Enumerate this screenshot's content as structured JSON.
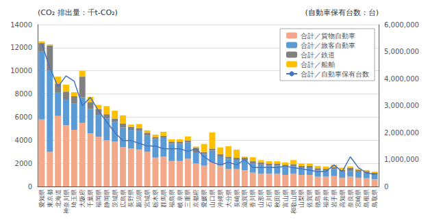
{
  "chart_data": {
    "type": "bar",
    "ylabel": "(CO₂ 排出量：千t-CO₂)",
    "y2label": "(自動車保有台数：台)",
    "categories": [
      "愛知県",
      "東京都",
      "北海道",
      "神奈川県",
      "埼玉県",
      "大阪府",
      "千葉県",
      "福岡県",
      "静岡県",
      "茨城県",
      "広島県",
      "長野県",
      "新潟県",
      "宮城県",
      "栃木県",
      "群馬県",
      "福島県",
      "岐阜県",
      "三重県",
      "京都府",
      "愛媛県",
      "山口県",
      "沖縄県",
      "大分県",
      "長崎県",
      "滋賀県",
      "香川県",
      "山形県",
      "石川県",
      "秋田県",
      "富山県",
      "和歌山県",
      "山梨県",
      "佐賀県",
      "徳島県",
      "福井県",
      "岩手県",
      "高知県",
      "奈良県",
      "宮崎県",
      "島根県",
      "鳥取県"
    ],
    "series": [
      {
        "name": "合計／貨物自動車",
        "type": "bar",
        "color": "#F4A88A",
        "values": [
          5800,
          3000,
          6100,
          5300,
          4900,
          5500,
          4600,
          4300,
          4000,
          3900,
          3400,
          3300,
          3200,
          3000,
          2500,
          2600,
          2200,
          2200,
          2400,
          2000,
          1800,
          2100,
          1800,
          1500,
          1500,
          1400,
          1200,
          1100,
          1100,
          1100,
          1000,
          1100,
          1000,
          1000,
          850,
          850,
          900,
          750,
          850,
          750,
          720,
          620
        ]
      },
      {
        "name": "合計／旅客自動車",
        "type": "bar",
        "color": "#5B9BD5",
        "values": [
          5900,
          7000,
          2000,
          2200,
          2300,
          2200,
          2100,
          1900,
          1900,
          1700,
          1700,
          1600,
          1600,
          1400,
          1600,
          1600,
          1500,
          1500,
          1400,
          900,
          1000,
          1000,
          800,
          900,
          800,
          900,
          800,
          800,
          700,
          700,
          700,
          650,
          600,
          600,
          550,
          500,
          600,
          500,
          500,
          500,
          420,
          380
        ]
      },
      {
        "name": "合計／鉄道",
        "type": "bar",
        "color": "#808080",
        "values": [
          700,
          2200,
          800,
          700,
          600,
          1800,
          600,
          500,
          350,
          250,
          350,
          250,
          250,
          250,
          180,
          180,
          180,
          180,
          180,
          450,
          180,
          180,
          180,
          180,
          180,
          180,
          180,
          180,
          180,
          180,
          180,
          180,
          180,
          180,
          180,
          180,
          180,
          180,
          280,
          180,
          180,
          180
        ]
      },
      {
        "name": "合計／船舶",
        "type": "bar",
        "color": "#FFC000",
        "values": [
          150,
          80,
          600,
          600,
          350,
          500,
          450,
          350,
          700,
          700,
          700,
          200,
          350,
          200,
          200,
          350,
          200,
          200,
          350,
          100,
          700,
          1400,
          600,
          900,
          700,
          100,
          350,
          200,
          200,
          200,
          200,
          350,
          200,
          200,
          200,
          200,
          200,
          200,
          100,
          100,
          100,
          100
        ]
      },
      {
        "name": "合計／自動車保有台数",
        "type": "line",
        "axis": "y2",
        "color": "#4472C4",
        "values": [
          5300000,
          4400000,
          3700000,
          4100000,
          3900000,
          3000000,
          3300000,
          2800000,
          2400000,
          2000000,
          1700000,
          1700000,
          1600000,
          1500000,
          1500000,
          1400000,
          1400000,
          1400000,
          1300000,
          1400000,
          1100000,
          900000,
          800000,
          900000,
          800000,
          1000000,
          700000,
          700000,
          700000,
          700000,
          750000,
          700000,
          650000,
          600000,
          550000,
          550000,
          800000,
          550000,
          1100000,
          700000,
          500000,
          450000
        ]
      }
    ],
    "stacked": true,
    "ylim": [
      0,
      14000
    ],
    "yticks": [
      0,
      2000,
      4000,
      6000,
      8000,
      10000,
      12000,
      14000
    ],
    "y2lim": [
      0,
      6000000
    ],
    "y2ticks": [
      0,
      {
        "value": 1000000,
        "label": "1,000,000"
      },
      {
        "value": 2000000,
        "label": "2,000,000"
      },
      {
        "value": 3000000,
        "label": "3,000,000"
      },
      {
        "value": 4000000,
        "label": "4,000,000"
      },
      {
        "value": 5000000,
        "label": "5,000,000"
      },
      {
        "value": 6000000,
        "label": "6,000,000"
      }
    ],
    "grid": true,
    "legend": "upper right"
  }
}
